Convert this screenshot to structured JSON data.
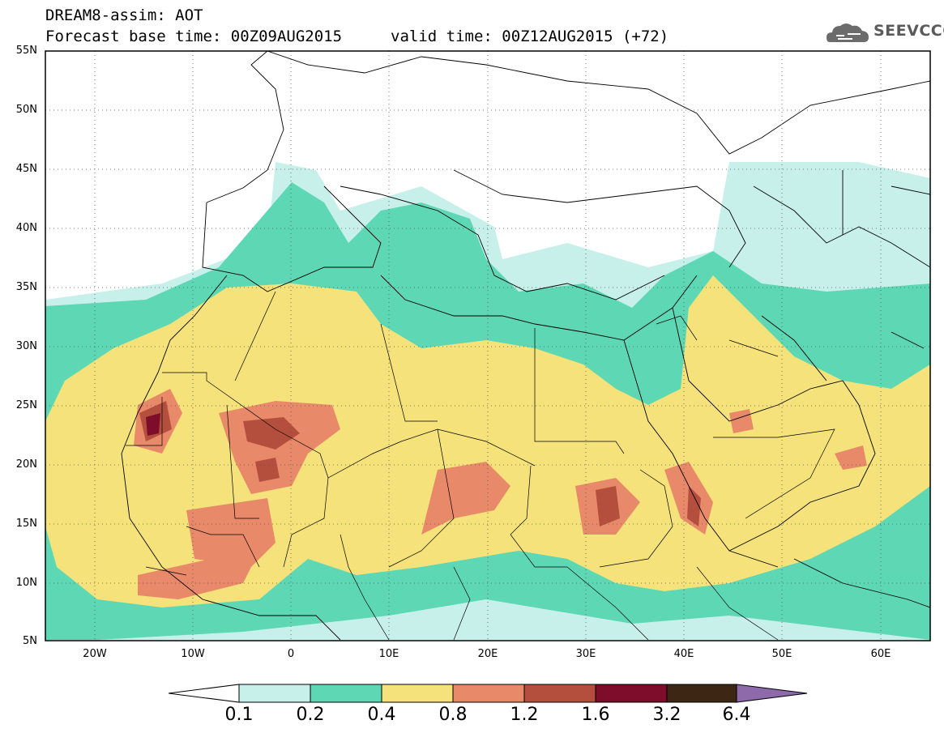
{
  "header": {
    "title_line1": "DREAM8-assim: AOT",
    "title_line2": "Forecast base time: 00Z09AUG2015",
    "valid_time": "valid time: 00Z12AUG2015 (+72)"
  },
  "logo": {
    "text": "SEEVCCC",
    "icon": "cloud-icon"
  },
  "axes": {
    "lat_labels": [
      "55N",
      "50N",
      "45N",
      "40N",
      "35N",
      "30N",
      "25N",
      "20N",
      "15N",
      "10N",
      "5N"
    ],
    "lon_labels": [
      "20W",
      "10W",
      "0",
      "10E",
      "20E",
      "30E",
      "40E",
      "50E",
      "60E"
    ]
  },
  "colorbar": {
    "labels": [
      "0.1",
      "0.2",
      "0.4",
      "0.8",
      "1.2",
      "1.6",
      "3.2",
      "6.4"
    ],
    "colors": [
      "#c8f0ea",
      "#5ed8b4",
      "#f5e27a",
      "#e8896a",
      "#b44f3e",
      "#7d0d2a",
      "#3d2714",
      "#8e6aab"
    ]
  }
}
